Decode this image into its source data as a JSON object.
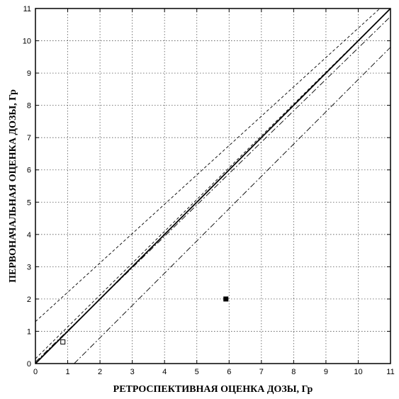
{
  "chart_data": {
    "type": "scatter",
    "title": "",
    "xlabel": "РЕТРОСПЕКТИВНАЯ ОЦЕНКА ДОЗЫ, Гр",
    "ylabel": "ПЕРВОНАЧАЛЬНАЯ ОЦЕНКА ДОЗЫ, Гр",
    "xlim": [
      0,
      11
    ],
    "ylim": [
      0,
      11
    ],
    "xticks": [
      "0",
      "1",
      "2",
      "3",
      "4",
      "5",
      "6",
      "7",
      "8",
      "9",
      "10",
      "11"
    ],
    "yticks": [
      "0",
      "1",
      "2",
      "3",
      "4",
      "5",
      "6",
      "7",
      "8",
      "9",
      "10",
      "11"
    ],
    "grid": true,
    "points": [
      {
        "x": 0.85,
        "y": 0.67,
        "style": "open-square"
      },
      {
        "x": 5.9,
        "y": 2.0,
        "style": "filled-square"
      }
    ],
    "lines": [
      {
        "style": "solid",
        "points": [
          [
            0,
            0
          ],
          [
            11,
            11
          ]
        ]
      },
      {
        "style": "dash-dot",
        "points": [
          [
            0,
            0.05
          ],
          [
            11,
            10.75
          ]
        ]
      },
      {
        "style": "dashed",
        "points": [
          [
            0,
            1.3
          ],
          [
            11,
            11.3
          ]
        ]
      },
      {
        "style": "dash-dot",
        "points": [
          [
            1.2,
            0
          ],
          [
            11,
            9.8
          ]
        ]
      },
      {
        "style": "dashed",
        "points": [
          [
            0,
            0.15
          ],
          [
            11,
            11
          ]
        ]
      }
    ],
    "colors": {
      "ink": "#000000",
      "grid": "#555555",
      "background": "#ffffff"
    }
  }
}
